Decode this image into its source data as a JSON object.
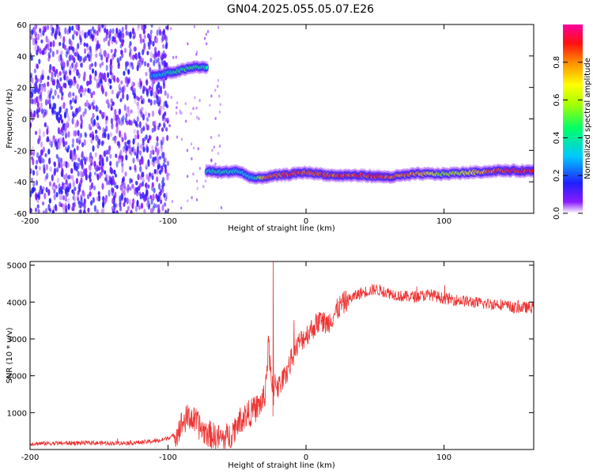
{
  "title": "GN04.2025.055.05.07.E26",
  "chart_data": [
    {
      "type": "heatmap",
      "xlabel": "Height of straight line (km)",
      "ylabel": "Frequency (Hz)",
      "xlim": [
        -200,
        165
      ],
      "ylim": [
        -60,
        60
      ],
      "xticks": [
        -200,
        -100,
        0,
        100
      ],
      "yticks": [
        -60,
        -40,
        -20,
        0,
        20,
        40,
        60
      ],
      "colorbar": {
        "label": "Normalized spectral amplitude",
        "ticks": [
          0.0,
          0.2,
          0.4,
          0.6,
          0.8
        ],
        "tick_labels": [
          "0.0",
          "0.2",
          "0.4",
          "0.6",
          "0.8"
        ],
        "range": [
          0,
          1
        ],
        "colormap": [
          "#ffffff",
          "#7a00ff",
          "#0000ff",
          "#00c0ff",
          "#00ff60",
          "#aaff00",
          "#ffff00",
          "#ff8000",
          "#ff0000",
          "#ff00a0"
        ]
      },
      "noise_region": {
        "x": [
          -200,
          -100
        ],
        "y": [
          -60,
          60
        ],
        "level": 0.15
      },
      "ridges": [
        {
          "x": [
            -112,
            -105,
            -100,
            -95,
            -90,
            -85,
            -80,
            -75,
            -72
          ],
          "y": [
            27,
            28,
            29,
            30,
            31,
            32,
            33,
            33,
            32
          ],
          "amplitude": [
            0.3,
            0.35,
            0.4,
            0.45,
            0.5,
            0.5,
            0.5,
            0.45,
            0.4
          ]
        },
        {
          "x": [
            -72,
            -60,
            -50,
            -40,
            -35,
            -30,
            -20,
            -10,
            0,
            10,
            20,
            30,
            40,
            60,
            80,
            100,
            120,
            140,
            160,
            165
          ],
          "y": [
            -33,
            -34,
            -33,
            -37,
            -38,
            -37,
            -36,
            -35,
            -34,
            -35,
            -36,
            -36,
            -36,
            -37,
            -35,
            -35,
            -34,
            -33,
            -33,
            -33
          ],
          "amplitude": [
            0.4,
            0.45,
            0.4,
            0.35,
            0.5,
            0.85,
            0.9,
            0.95,
            0.9,
            0.9,
            0.9,
            0.9,
            0.95,
            0.9,
            0.85,
            0.6,
            0.75,
            0.95,
            0.95,
            0.9
          ]
        }
      ]
    },
    {
      "type": "line",
      "xlabel": "Height of straight line (km)",
      "ylabel": "SNR (10 * v/v)",
      "xlim": [
        -200,
        165
      ],
      "ylim": [
        0,
        5100
      ],
      "xticks": [
        -200,
        -100,
        0,
        100
      ],
      "yticks": [
        1000,
        2000,
        3000,
        4000,
        5000
      ],
      "color": "#ee3333",
      "series": [
        {
          "x": [
            -200,
            -180,
            -160,
            -140,
            -120,
            -105,
            -100,
            -95,
            -90,
            -85,
            -80,
            -75,
            -70,
            -65,
            -60,
            -55,
            -50,
            -45,
            -40,
            -35,
            -30,
            -27,
            -25,
            -22,
            -20,
            -15,
            -10,
            -5,
            0,
            5,
            10,
            15,
            20,
            25,
            30,
            40,
            50,
            60,
            70,
            80,
            90,
            100,
            110,
            120,
            130,
            140,
            150,
            165
          ],
          "y": [
            160,
            170,
            180,
            170,
            190,
            250,
            320,
            380,
            700,
            900,
            750,
            520,
            420,
            330,
            300,
            380,
            700,
            900,
            1000,
            1150,
            1400,
            2900,
            1600,
            1900,
            1700,
            2000,
            2500,
            2900,
            3100,
            3300,
            3500,
            3400,
            3650,
            3900,
            4050,
            4250,
            4350,
            4250,
            4150,
            4150,
            4200,
            4100,
            4050,
            4000,
            3950,
            3950,
            3850,
            3850
          ]
        }
      ]
    }
  ]
}
